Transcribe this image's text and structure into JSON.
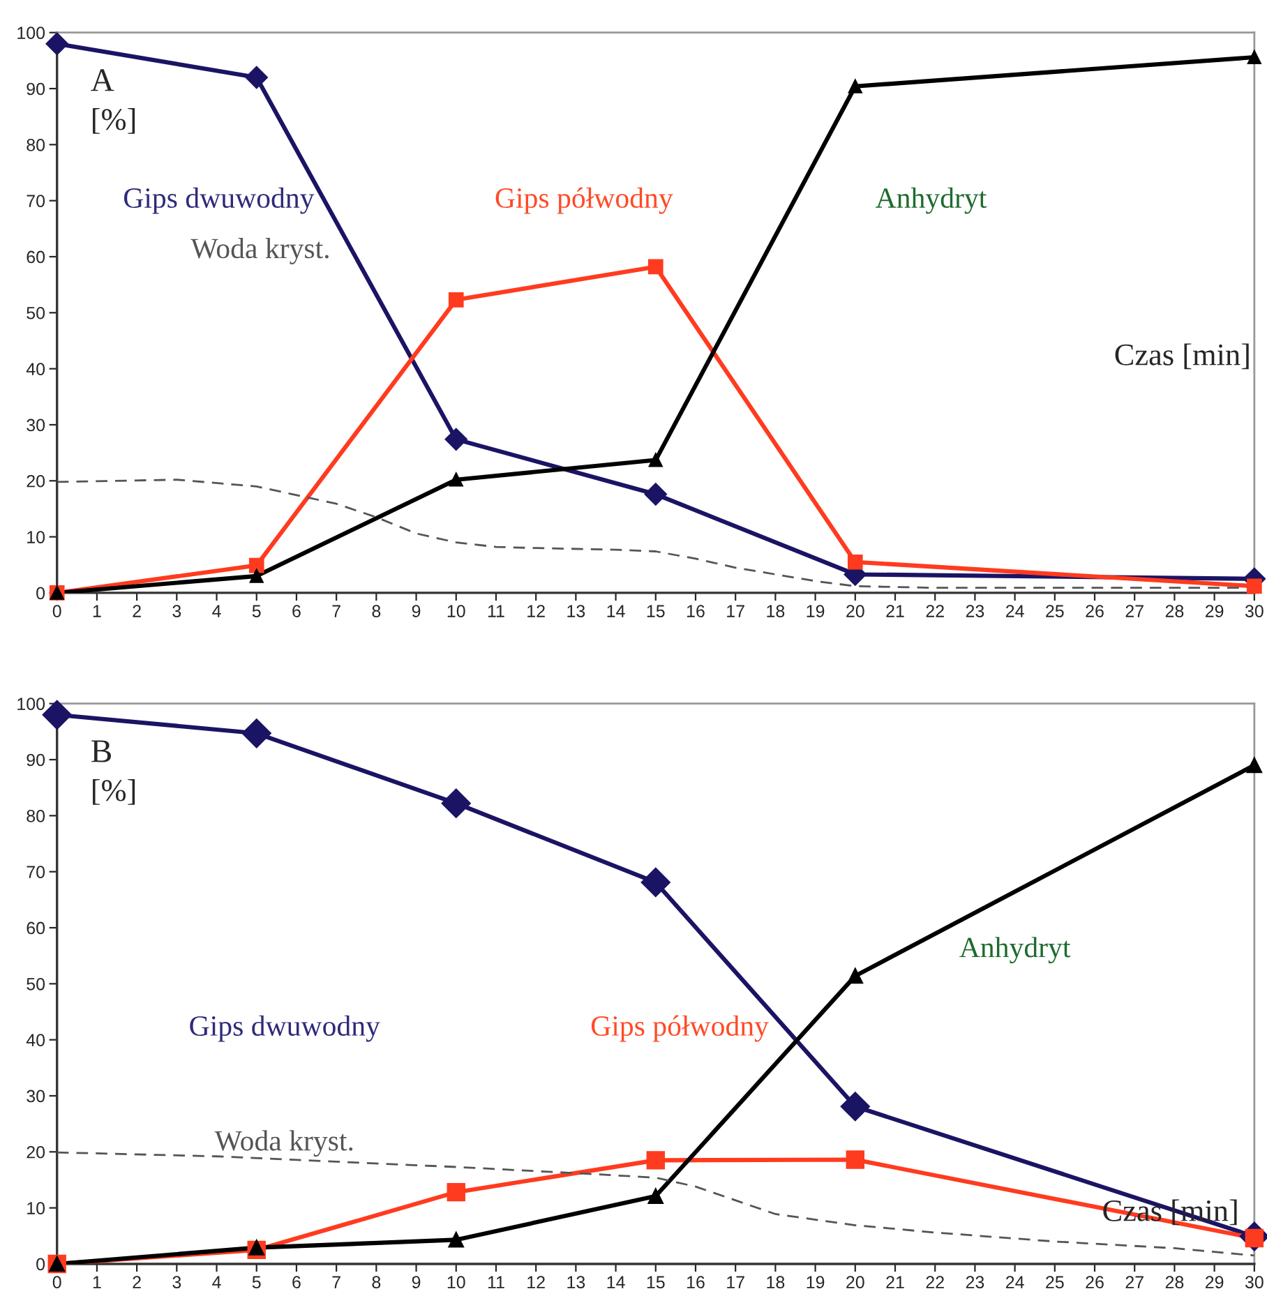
{
  "chart_data": [
    {
      "type": "line",
      "title": "A",
      "ylabel": "[%]",
      "xlabel": "Czas [min]",
      "xlim": [
        0,
        30
      ],
      "xticks": [
        0,
        1,
        2,
        3,
        4,
        5,
        6,
        7,
        8,
        9,
        10,
        11,
        12,
        13,
        14,
        15,
        16,
        17,
        18,
        19,
        20,
        21,
        22,
        23,
        24,
        25,
        26,
        27,
        28,
        29,
        30
      ],
      "ylim": [
        0,
        100
      ],
      "yticks": [
        0,
        10,
        20,
        30,
        40,
        50,
        60,
        70,
        80,
        90,
        100
      ],
      "series": [
        {
          "name": "Gips dwuwodny",
          "color": "#1b1464",
          "marker": "diamond",
          "line_style": "solid",
          "x": [
            0,
            5,
            10,
            15,
            20,
            30
          ],
          "values": [
            98,
            92,
            27.4,
            17.6,
            3.3,
            2.5
          ]
        },
        {
          "name": "Gips półwodny",
          "color": "#ff3b1f",
          "marker": "square",
          "line_style": "solid",
          "x": [
            0,
            5,
            10,
            15,
            20,
            30
          ],
          "values": [
            0,
            4.9,
            52.3,
            58.2,
            5.5,
            1.2
          ]
        },
        {
          "name": "Anhydryt",
          "color": "#000000",
          "marker": "triangle",
          "line_style": "solid",
          "x": [
            0,
            5,
            10,
            15,
            20,
            30
          ],
          "values": [
            0,
            3,
            20.2,
            23.7,
            90.4,
            95.6
          ]
        },
        {
          "name": "Woda kryst.",
          "color": "#555555",
          "marker": "none",
          "line_style": "dashed",
          "x": [
            0,
            3,
            5,
            7,
            8,
            9,
            10,
            11,
            12,
            14,
            15,
            16,
            17,
            18,
            19,
            20,
            22,
            30
          ],
          "values": [
            19.8,
            20.2,
            19,
            15.9,
            13.5,
            10.6,
            9,
            8.2,
            8,
            7.7,
            7.4,
            6.1,
            4.5,
            3.3,
            2.1,
            1.2,
            0.9,
            0.9
          ]
        }
      ]
    },
    {
      "type": "line",
      "title": "B",
      "ylabel": "[%]",
      "xlabel": "Czas [min]",
      "xlim": [
        0,
        30
      ],
      "xticks": [
        0,
        1,
        2,
        3,
        4,
        5,
        6,
        7,
        8,
        9,
        10,
        11,
        12,
        13,
        14,
        15,
        16,
        17,
        18,
        19,
        20,
        21,
        22,
        23,
        24,
        25,
        26,
        27,
        28,
        29,
        30
      ],
      "ylim": [
        0,
        100
      ],
      "yticks": [
        0,
        10,
        20,
        30,
        40,
        50,
        60,
        70,
        80,
        90,
        100
      ],
      "series": [
        {
          "name": "Gips dwuwodny",
          "color": "#1b1464",
          "marker": "diamond",
          "line_style": "solid",
          "x": [
            0,
            5,
            10,
            15,
            20,
            30
          ],
          "values": [
            98,
            94.7,
            82.2,
            68.1,
            28.1,
            4.9
          ]
        },
        {
          "name": "Gips półwodny",
          "color": "#ff3b1f",
          "marker": "square",
          "line_style": "solid",
          "x": [
            0,
            5,
            10,
            15,
            20,
            30
          ],
          "values": [
            0,
            2.5,
            12.8,
            18.5,
            18.6,
            4.6
          ]
        },
        {
          "name": "Anhydryt",
          "color": "#000000",
          "marker": "triangle",
          "line_style": "solid",
          "x": [
            0,
            5,
            10,
            15,
            20,
            30
          ],
          "values": [
            0,
            2.9,
            4.3,
            12.1,
            51.4,
            89
          ]
        },
        {
          "name": "Woda kryst.",
          "color": "#555555",
          "marker": "none",
          "line_style": "dashed",
          "x": [
            0,
            4,
            10,
            13,
            14,
            15,
            16,
            18,
            20,
            22,
            25,
            28,
            30
          ],
          "values": [
            19.9,
            19.2,
            17.3,
            16.2,
            15.8,
            15.4,
            13.8,
            8.9,
            6.9,
            5.6,
            4,
            2.8,
            1.5
          ]
        }
      ]
    }
  ]
}
